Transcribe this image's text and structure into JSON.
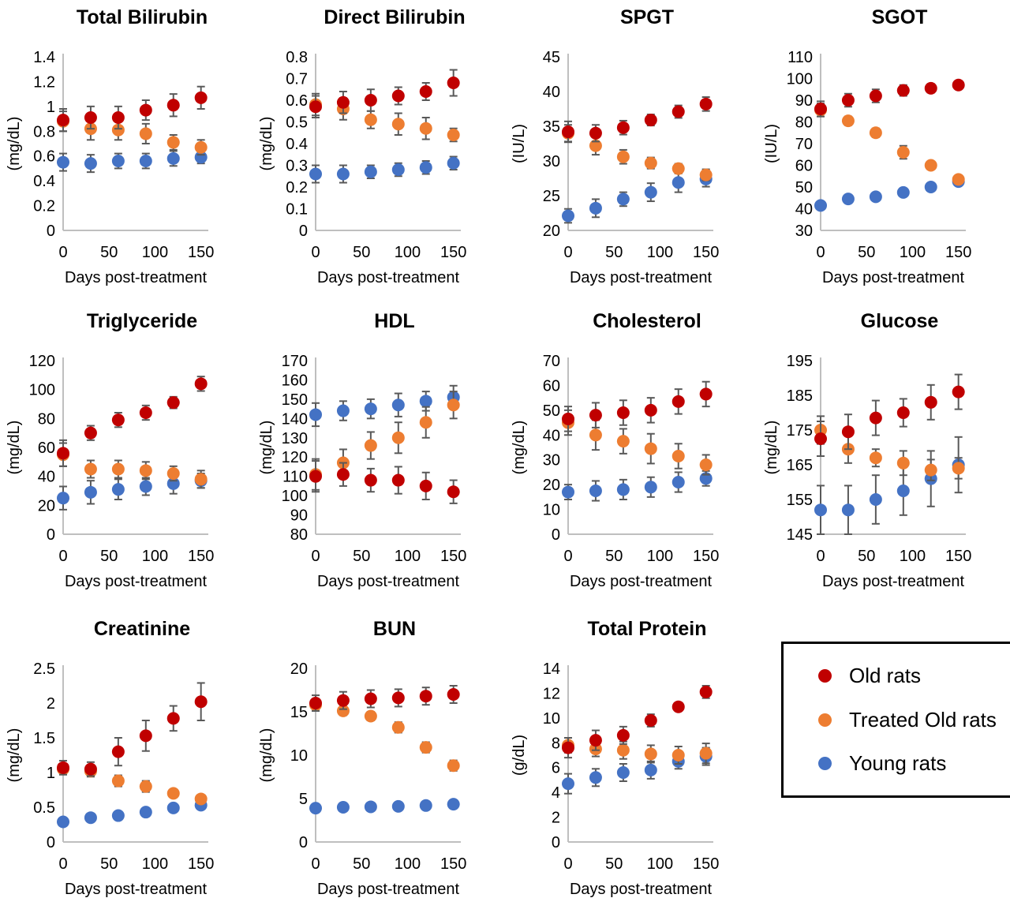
{
  "style": {
    "axis_color": "#BFBFBF",
    "error_bar_color": "#595959",
    "text_color": "#000000",
    "old_rats_color": "#C00000",
    "treated_old_rats_color": "#ED7D31",
    "young_rats_color": "#4472C4"
  },
  "legend": {
    "items": [
      {
        "label": "Old rats",
        "color": "#C00000",
        "marker": "circle-icon"
      },
      {
        "label": "Treated Old rats",
        "color": "#ED7D31",
        "marker": "circle-icon"
      },
      {
        "label": "Young rats",
        "color": "#4472C4",
        "marker": "circle-icon"
      }
    ]
  },
  "chart_data": [
    {
      "type": "scatter",
      "title": "Total Bilirubin",
      "ylabel": "(mg/dL)",
      "xlabel": "Days post-treatment",
      "x": [
        0,
        30,
        60,
        90,
        120,
        150
      ],
      "xticks": [
        0,
        50,
        100,
        150
      ],
      "xlim": [
        0,
        158
      ],
      "ylim": [
        0,
        1.4
      ],
      "ytick_step": 0.2,
      "series": [
        {
          "name": "Old rats",
          "color": "#C00000",
          "values": [
            0.89,
            0.91,
            0.91,
            0.97,
            1.01,
            1.07
          ],
          "errors": [
            0.09,
            0.09,
            0.09,
            0.08,
            0.09,
            0.09
          ]
        },
        {
          "name": "Treated Old rats",
          "color": "#ED7D31",
          "values": [
            0.88,
            0.82,
            0.81,
            0.78,
            0.71,
            0.67
          ],
          "errors": [
            0.08,
            0.09,
            0.08,
            0.08,
            0.06,
            0.06
          ]
        },
        {
          "name": "Young rats",
          "color": "#4472C4",
          "values": [
            0.55,
            0.54,
            0.56,
            0.56,
            0.58,
            0.59
          ],
          "errors": [
            0.07,
            0.07,
            0.06,
            0.06,
            0.06,
            0.05
          ]
        }
      ]
    },
    {
      "type": "scatter",
      "title": "Direct Bilirubin",
      "ylabel": "(mg/dL)",
      "xlabel": "Days post-treatment",
      "x": [
        0,
        30,
        60,
        90,
        120,
        150
      ],
      "xticks": [
        0,
        50,
        100,
        150
      ],
      "xlim": [
        0,
        158
      ],
      "ylim": [
        0,
        0.8
      ],
      "ytick_step": 0.1,
      "series": [
        {
          "name": "Old rats",
          "color": "#C00000",
          "values": [
            0.57,
            0.59,
            0.6,
            0.62,
            0.64,
            0.68
          ],
          "errors": [
            0.05,
            0.05,
            0.05,
            0.04,
            0.04,
            0.06
          ]
        },
        {
          "name": "Treated Old rats",
          "color": "#ED7D31",
          "values": [
            0.58,
            0.56,
            0.51,
            0.49,
            0.47,
            0.44
          ],
          "errors": [
            0.05,
            0.05,
            0.04,
            0.05,
            0.05,
            0.03
          ]
        },
        {
          "name": "Young rats",
          "color": "#4472C4",
          "values": [
            0.26,
            0.26,
            0.27,
            0.28,
            0.29,
            0.31
          ],
          "errors": [
            0.04,
            0.04,
            0.03,
            0.03,
            0.03,
            0.03
          ]
        }
      ]
    },
    {
      "type": "scatter",
      "title": "SPGT",
      "ylabel": "(IU/L)",
      "xlabel": "Days post-treatment",
      "x": [
        0,
        30,
        60,
        90,
        120,
        150
      ],
      "xticks": [
        0,
        50,
        100,
        150
      ],
      "xlim": [
        0,
        158
      ],
      "ylim": [
        20,
        45
      ],
      "ytick_step": 5,
      "series": [
        {
          "name": "Old rats",
          "color": "#C00000",
          "values": [
            34.2,
            34.0,
            34.8,
            35.9,
            37.1,
            38.2
          ],
          "errors": [
            1.5,
            1.2,
            1.0,
            0.8,
            0.9,
            1.0
          ]
        },
        {
          "name": "Treated Old rats",
          "color": "#ED7D31",
          "values": [
            34.0,
            32.2,
            30.6,
            29.7,
            28.9,
            28.0
          ],
          "errors": [
            1.2,
            1.3,
            1.0,
            0.8,
            0.7,
            0.8
          ]
        },
        {
          "name": "Young rats",
          "color": "#4472C4",
          "values": [
            22.1,
            23.2,
            24.5,
            25.5,
            26.9,
            27.4
          ],
          "errors": [
            1.0,
            1.3,
            1.0,
            1.3,
            1.4,
            1.1
          ]
        }
      ]
    },
    {
      "type": "scatter",
      "title": "SGOT",
      "ylabel": "(IU/L)",
      "xlabel": "Days post-treatment",
      "x": [
        0,
        30,
        60,
        90,
        120,
        150
      ],
      "xticks": [
        0,
        50,
        100,
        150
      ],
      "xlim": [
        0,
        158
      ],
      "ylim": [
        30,
        110
      ],
      "ytick_step": 10,
      "series": [
        {
          "name": "Old rats",
          "color": "#C00000",
          "values": [
            86,
            90,
            92,
            94.5,
            95.5,
            97
          ],
          "errors": [
            3.5,
            3,
            3,
            2.5,
            2,
            1.5
          ]
        },
        {
          "name": "Treated Old rats",
          "color": "#ED7D31",
          "values": [
            85.5,
            80.5,
            75,
            66,
            60,
            53.5
          ],
          "errors": [
            3,
            2,
            2,
            3,
            1.5,
            1.5
          ]
        },
        {
          "name": "Young rats",
          "color": "#4472C4",
          "values": [
            41.5,
            44.5,
            45.5,
            47.5,
            50,
            52.5
          ],
          "errors": [
            1.5,
            1,
            1,
            1.5,
            1.5,
            1
          ]
        }
      ]
    },
    {
      "type": "scatter",
      "title": "Triglyceride",
      "ylabel": "(mg/dL)",
      "xlabel": "Days post-treatment",
      "x": [
        0,
        30,
        60,
        90,
        120,
        150
      ],
      "xticks": [
        0,
        50,
        100,
        150
      ],
      "xlim": [
        0,
        158
      ],
      "ylim": [
        0,
        120
      ],
      "ytick_step": 20,
      "series": [
        {
          "name": "Old rats",
          "color": "#C00000",
          "values": [
            56,
            70,
            79,
            84,
            91,
            104
          ],
          "errors": [
            9,
            5,
            5,
            5,
            4,
            5
          ]
        },
        {
          "name": "Treated Old rats",
          "color": "#ED7D31",
          "values": [
            55,
            45,
            45,
            44,
            42,
            38
          ],
          "errors": [
            8,
            6,
            6,
            6,
            5,
            6
          ]
        },
        {
          "name": "Young rats",
          "color": "#4472C4",
          "values": [
            25,
            29,
            31,
            33,
            35,
            37
          ],
          "errors": [
            8,
            8,
            7,
            6,
            7,
            5
          ]
        }
      ]
    },
    {
      "type": "scatter",
      "title": "HDL",
      "ylabel": "(mg/dL)",
      "xlabel": "Days post-treatment",
      "x": [
        0,
        30,
        60,
        90,
        120,
        150
      ],
      "xticks": [
        0,
        50,
        100,
        150
      ],
      "xlim": [
        0,
        158
      ],
      "ylim": [
        80,
        170
      ],
      "ytick_step": 10,
      "series": [
        {
          "name": "Old rats",
          "color": "#C00000",
          "values": [
            110,
            111,
            108,
            108,
            105,
            102
          ],
          "errors": [
            8,
            6,
            6,
            7,
            7,
            6
          ]
        },
        {
          "name": "Treated Old rats",
          "color": "#ED7D31",
          "values": [
            111,
            117,
            126,
            130,
            138,
            147
          ],
          "errors": [
            8,
            7,
            7,
            8,
            8,
            7
          ]
        },
        {
          "name": "Young rats",
          "color": "#4472C4",
          "values": [
            142,
            144,
            145,
            147,
            149,
            151
          ],
          "errors": [
            6,
            5,
            5,
            6,
            5,
            6
          ]
        }
      ]
    },
    {
      "type": "scatter",
      "title": "Cholesterol",
      "ylabel": "(mg/dL)",
      "xlabel": "Days post-treatment",
      "x": [
        0,
        30,
        60,
        90,
        120,
        150
      ],
      "xticks": [
        0,
        50,
        100,
        150
      ],
      "xlim": [
        0,
        158
      ],
      "ylim": [
        0,
        70
      ],
      "ytick_step": 10,
      "series": [
        {
          "name": "Old rats",
          "color": "#C00000",
          "values": [
            46.5,
            48,
            49,
            50,
            53.5,
            56.5
          ],
          "errors": [
            5,
            5,
            5,
            5,
            5,
            5
          ]
        },
        {
          "name": "Treated Old rats",
          "color": "#ED7D31",
          "values": [
            45,
            40,
            37.5,
            34.5,
            31.5,
            28
          ],
          "errors": [
            5,
            6,
            5,
            6,
            5,
            4
          ]
        },
        {
          "name": "Young rats",
          "color": "#4472C4",
          "values": [
            17,
            17.5,
            18,
            19,
            21,
            22.5
          ],
          "errors": [
            3,
            4,
            4,
            4,
            4,
            3
          ]
        }
      ]
    },
    {
      "type": "scatter",
      "title": "Glucose",
      "ylabel": "(mg/dL)",
      "xlabel": "Days post-treatment",
      "x": [
        0,
        30,
        60,
        90,
        120,
        150
      ],
      "xticks": [
        0,
        50,
        100,
        150
      ],
      "xlim": [
        0,
        158
      ],
      "ylim": [
        145,
        195
      ],
      "ytick_step": 10,
      "series": [
        {
          "name": "Old rats",
          "color": "#C00000",
          "values": [
            172.5,
            174.5,
            178.5,
            180,
            183,
            186
          ],
          "errors": [
            5,
            5,
            5,
            4,
            5,
            5
          ]
        },
        {
          "name": "Treated Old rats",
          "color": "#ED7D31",
          "values": [
            175,
            169.5,
            167,
            165.5,
            163.5,
            164
          ],
          "errors": [
            4,
            4,
            2.5,
            3.5,
            3,
            3
          ]
        },
        {
          "name": "Young rats",
          "color": "#4472C4",
          "values": [
            152,
            152,
            155,
            157.5,
            161,
            165
          ],
          "errors": [
            7,
            7,
            7,
            7,
            8,
            8
          ]
        }
      ]
    },
    {
      "type": "scatter",
      "title": "Creatinine",
      "ylabel": "(mg/dL)",
      "xlabel": "Days post-treatment",
      "x": [
        0,
        30,
        60,
        90,
        120,
        150
      ],
      "xticks": [
        0,
        50,
        100,
        150
      ],
      "xlim": [
        0,
        158
      ],
      "ylim": [
        0,
        2.5
      ],
      "ytick_step": 0.5,
      "series": [
        {
          "name": "Old rats",
          "color": "#C00000",
          "values": [
            1.07,
            1.05,
            1.3,
            1.53,
            1.78,
            2.02
          ],
          "errors": [
            0.1,
            0.1,
            0.2,
            0.22,
            0.18,
            0.27
          ]
        },
        {
          "name": "Treated Old rats",
          "color": "#ED7D31",
          "values": [
            1.05,
            1.02,
            0.88,
            0.8,
            0.7,
            0.62
          ],
          "errors": [
            0.08,
            0.08,
            0.08,
            0.08,
            0.05,
            0.05
          ]
        },
        {
          "name": "Young rats",
          "color": "#4472C4",
          "values": [
            0.29,
            0.35,
            0.38,
            0.43,
            0.49,
            0.53
          ],
          "errors": [
            0.02,
            0.02,
            0.02,
            0.02,
            0.03,
            0.03
          ]
        }
      ]
    },
    {
      "type": "scatter",
      "title": "BUN",
      "ylabel": "(mg/dL)",
      "xlabel": "Days post-treatment",
      "x": [
        0,
        30,
        60,
        90,
        120,
        150
      ],
      "xticks": [
        0,
        50,
        100,
        150
      ],
      "xlim": [
        0,
        158
      ],
      "ylim": [
        0,
        20
      ],
      "ytick_step": 5,
      "series": [
        {
          "name": "Old rats",
          "color": "#C00000",
          "values": [
            16.0,
            16.3,
            16.5,
            16.6,
            16.8,
            17.0
          ],
          "errors": [
            0.9,
            1.0,
            1.0,
            1.0,
            1.0,
            1.0
          ]
        },
        {
          "name": "Treated Old rats",
          "color": "#ED7D31",
          "values": [
            15.8,
            15.1,
            14.5,
            13.2,
            10.9,
            8.8
          ],
          "errors": [
            0.7,
            0.5,
            0.5,
            0.6,
            0.6,
            0.6
          ]
        },
        {
          "name": "Young rats",
          "color": "#4472C4",
          "values": [
            3.9,
            4.0,
            4.05,
            4.1,
            4.2,
            4.35
          ],
          "errors": [
            0.15,
            0.15,
            0.15,
            0.15,
            0.15,
            0.15
          ]
        }
      ]
    },
    {
      "type": "scatter",
      "title": "Total Protein",
      "ylabel": "(g/dL)",
      "xlabel": "Days post-treatment",
      "x": [
        0,
        30,
        60,
        90,
        120,
        150
      ],
      "xticks": [
        0,
        50,
        100,
        150
      ],
      "xlim": [
        0,
        158
      ],
      "ylim": [
        0,
        14
      ],
      "ytick_step": 2,
      "series": [
        {
          "name": "Old rats",
          "color": "#C00000",
          "values": [
            7.6,
            8.2,
            8.6,
            9.8,
            10.9,
            12.1
          ],
          "errors": [
            0.8,
            0.8,
            0.7,
            0.5,
            0.3,
            0.5
          ]
        },
        {
          "name": "Treated Old rats",
          "color": "#ED7D31",
          "values": [
            7.8,
            7.5,
            7.4,
            7.1,
            7.0,
            7.15
          ],
          "errors": [
            0.6,
            0.6,
            0.7,
            0.7,
            0.7,
            0.8
          ]
        },
        {
          "name": "Young rats",
          "color": "#4472C4",
          "values": [
            4.7,
            5.2,
            5.6,
            5.8,
            6.5,
            6.9
          ],
          "errors": [
            0.8,
            0.7,
            0.7,
            0.7,
            0.6,
            0.7
          ]
        }
      ]
    }
  ]
}
